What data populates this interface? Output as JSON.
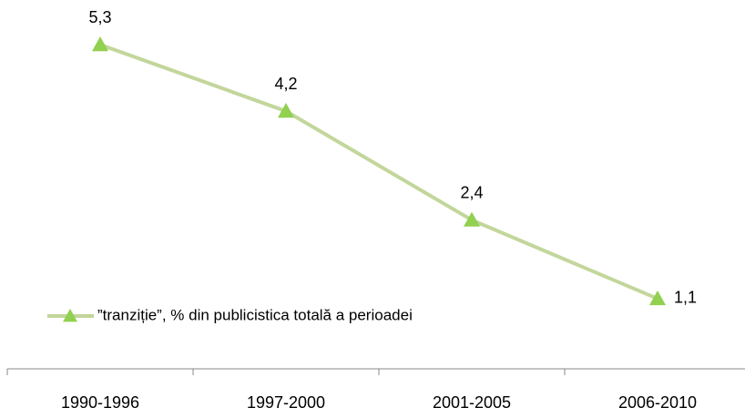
{
  "chart_data": {
    "type": "line",
    "categories": [
      "1990-1996",
      "1997-2000",
      "2001-2005",
      "2006-2010"
    ],
    "series": [
      {
        "name": "”tranziție”, % din publicistica totală a perioadei",
        "color": "#c3d69b",
        "marker_color": "#92d050",
        "values": [
          5.3,
          4.2,
          2.4,
          1.1
        ],
        "value_labels": [
          "5,3",
          "4,2",
          "2,4",
          "1,1"
        ]
      }
    ],
    "legend": "left"
  }
}
